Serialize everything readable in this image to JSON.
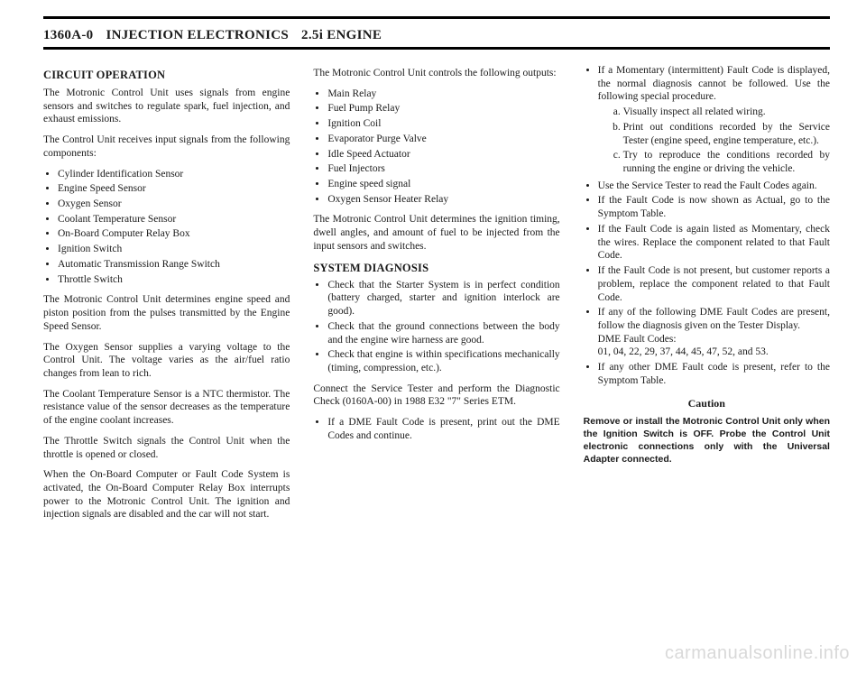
{
  "header": {
    "pagecode": "1360A-0",
    "section": "INJECTION ELECTRONICS",
    "engine": "2.5i ENGINE"
  },
  "col1": {
    "h1": "CIRCUIT OPERATION",
    "p1": "The Motronic Control Unit uses signals from engine sensors and switches to regulate spark, fuel injection, and exhaust emissions.",
    "p2": "The Control Unit receives input signals from the following components:",
    "inputs": [
      "Cylinder Identification Sensor",
      "Engine Speed Sensor",
      "Oxygen Sensor",
      "Coolant Temperature Sensor",
      "On-Board Computer Relay Box",
      "Ignition Switch",
      "Automatic Transmission Range Switch",
      "Throttle Switch"
    ],
    "p3": "The Motronic Control Unit determines engine speed and piston position from the pulses transmitted by the Engine Speed Sensor.",
    "p4": "The Oxygen Sensor supplies a varying voltage to the Control Unit. The voltage varies as the air/fuel ratio changes from lean to rich.",
    "p5": "The Coolant Temperature Sensor is a NTC thermistor. The resistance value of the sensor decreases as the temperature of the engine coolant increases.",
    "p6": "The Throttle Switch signals the Control Unit when the throttle is opened or closed.",
    "p7": "When the On-Board Computer or Fault Code System is activated, the On-Board Computer Relay Box interrupts power to the Motronic Control Unit. The ignition and injection signals are disabled and the car will not start."
  },
  "col2": {
    "p1": "The Motronic Control Unit controls the following outputs:",
    "outputs": [
      "Main Relay",
      "Fuel Pump Relay",
      "Ignition Coil",
      "Evaporator Purge Valve",
      "Idle Speed Actuator",
      "Fuel Injectors",
      "Engine speed signal",
      "Oxygen Sensor Heater Relay"
    ],
    "p2": "The Motronic Control Unit determines the ignition timing, dwell angles, and amount of fuel to be injected from the input sensors and switches.",
    "h2": "SYSTEM DIAGNOSIS",
    "diag": [
      "Check that the Starter System is in perfect condition (battery charged, starter and ignition interlock are good).",
      "Check that the ground connections between the body and the engine wire harness are good.",
      "Check that engine is within specifications mechanically (timing, compression, etc.)."
    ],
    "p3": "Connect the Service Tester and perform the Diagnostic Check (0160A-00) in 1988 E32 \"7\" Series ETM.",
    "diag2": [
      "If a DME Fault Code is present, print out the DME Codes and continue."
    ]
  },
  "col3": {
    "b1": "If a Momentary (intermittent) Fault Code is displayed, the normal diagnosis cannot be followed. Use the following special procedure.",
    "sub": [
      "Visually inspect all related wiring.",
      "Print out conditions recorded by the Service Tester (engine speed, engine temperature, etc.).",
      "Try to reproduce the conditions recorded by running the engine or driving the vehicle."
    ],
    "b2": "Use the Service Tester to read the Fault Codes again.",
    "b3": "If the Fault Code is now shown as Actual, go to the Symptom Table.",
    "b4": "If the Fault Code is again listed as Momentary, check the wires. Replace the component related to that Fault Code.",
    "b5": "If the Fault Code is not present, but customer reports a problem, replace the component related to that Fault Code.",
    "b6a": "If any of the following DME Fault Codes are present, follow the diagnosis given on the Tester Display.",
    "b6b": "DME Fault Codes:",
    "b6c": "01, 04, 22, 29, 37, 44, 45, 47, 52, and 53.",
    "b7": "If any other DME Fault code is present, refer to the Symptom Table.",
    "caution_title": "Caution",
    "caution_body": "Remove or install the Motronic Control Unit only when the Ignition Switch is OFF. Probe the Control Unit electronic connections only with the Universal Adapter connected."
  },
  "watermark": "carmanualsonline.info"
}
